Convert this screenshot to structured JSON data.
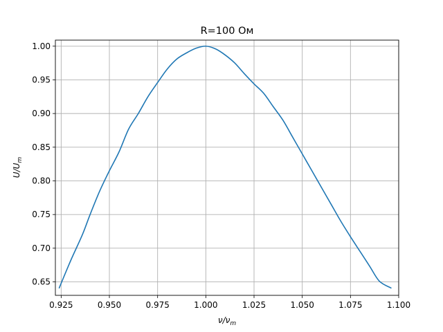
{
  "chart_data": {
    "type": "line",
    "title": "R=100 Ом",
    "xlabel_base": "ν/ν",
    "xlabel_sub": "m",
    "ylabel_base": "U/U",
    "ylabel_sub": "m",
    "xlim": [
      0.922,
      1.1
    ],
    "ylim": [
      0.63,
      1.009
    ],
    "xticks": [
      0.925,
      0.95,
      0.975,
      1.0,
      1.025,
      1.05,
      1.075,
      1.1
    ],
    "xtick_labels": [
      "0.925",
      "0.950",
      "0.975",
      "1.000",
      "1.025",
      "1.050",
      "1.075",
      "1.100"
    ],
    "yticks": [
      0.65,
      0.7,
      0.75,
      0.8,
      0.85,
      0.9,
      0.95,
      1.0
    ],
    "ytick_labels": [
      "0.65",
      "0.70",
      "0.75",
      "0.80",
      "0.85",
      "0.90",
      "0.95",
      "1.00"
    ],
    "grid": true,
    "color": "#1f77b4",
    "series": [
      {
        "x": [
          0.924,
          0.93,
          0.936,
          0.94,
          0.945,
          0.95,
          0.955,
          0.96,
          0.965,
          0.97,
          0.975,
          0.98,
          0.985,
          0.99,
          0.995,
          1.0,
          1.005,
          1.01,
          1.015,
          1.02,
          1.025,
          1.03,
          1.035,
          1.04,
          1.045,
          1.05,
          1.055,
          1.06,
          1.065,
          1.07,
          1.075,
          1.08,
          1.085,
          1.09,
          1.096
        ],
        "y": [
          0.641,
          0.682,
          0.72,
          0.75,
          0.785,
          0.815,
          0.843,
          0.877,
          0.9,
          0.925,
          0.946,
          0.966,
          0.981,
          0.99,
          0.997,
          1.0,
          0.996,
          0.987,
          0.975,
          0.959,
          0.944,
          0.93,
          0.91,
          0.89,
          0.865,
          0.84,
          0.815,
          0.79,
          0.765,
          0.74,
          0.717,
          0.695,
          0.673,
          0.651,
          0.641
        ]
      }
    ]
  }
}
